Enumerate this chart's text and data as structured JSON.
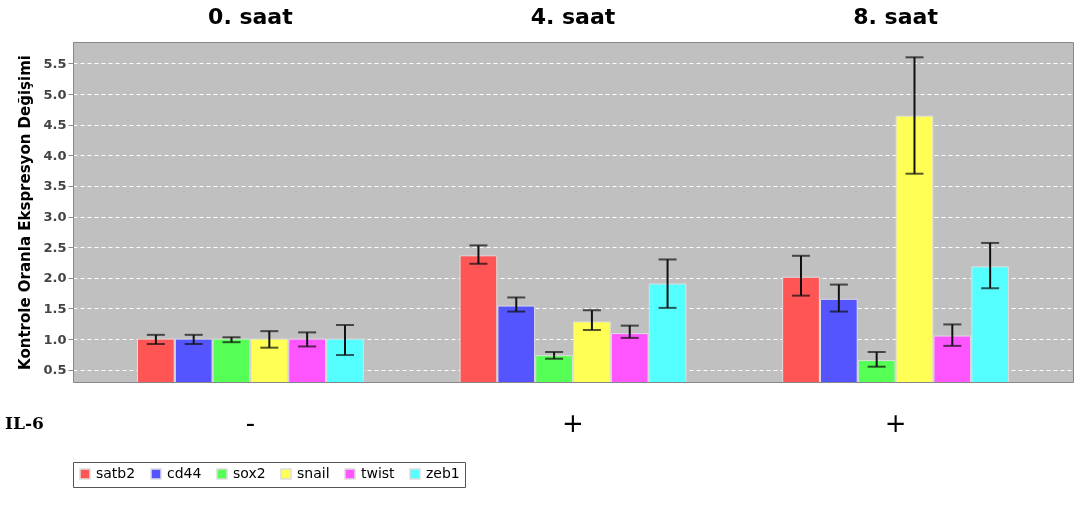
{
  "chart_data": {
    "type": "bar",
    "ylabel": "Kontrole Oranla Ekspresyon Değişimi",
    "categories": [
      "0. saat",
      "4. saat",
      "8. saat"
    ],
    "series": [
      {
        "name": "satb2",
        "color": "#ff5555",
        "values": [
          1.0,
          2.36,
          2.01
        ],
        "errors": [
          [
            0.92,
            1.07
          ],
          [
            2.23,
            2.53
          ],
          [
            1.71,
            2.36
          ]
        ]
      },
      {
        "name": "cd44",
        "color": "#5555ff",
        "values": [
          1.0,
          1.54,
          1.65
        ],
        "errors": [
          [
            0.92,
            1.07
          ],
          [
            1.45,
            1.68
          ],
          [
            1.45,
            1.89
          ]
        ]
      },
      {
        "name": "sox2",
        "color": "#55ff55",
        "values": [
          1.0,
          0.73,
          0.65
        ],
        "errors": [
          [
            0.95,
            1.03
          ],
          [
            0.68,
            0.79
          ],
          [
            0.55,
            0.79
          ]
        ]
      },
      {
        "name": "snail",
        "color": "#ffff55",
        "values": [
          1.0,
          1.28,
          4.64
        ],
        "errors": [
          [
            0.86,
            1.13
          ],
          [
            1.15,
            1.47
          ],
          [
            3.7,
            5.6
          ]
        ]
      },
      {
        "name": "twist",
        "color": "#ff55ff",
        "values": [
          1.0,
          1.09,
          1.05
        ],
        "errors": [
          [
            0.88,
            1.11
          ],
          [
            1.02,
            1.22
          ],
          [
            0.89,
            1.24
          ]
        ]
      },
      {
        "name": "zeb1",
        "color": "#55ffff",
        "values": [
          1.0,
          1.9,
          2.18
        ],
        "errors": [
          [
            0.74,
            1.23
          ],
          [
            1.51,
            2.3
          ],
          [
            1.83,
            2.57
          ]
        ]
      }
    ],
    "ylim": [
      0.3,
      5.85
    ],
    "yticks": [
      {
        "value": 0.5,
        "label": "0.5"
      },
      {
        "value": 1.0,
        "label": "1.0"
      },
      {
        "value": 1.5,
        "label": "1.5"
      },
      {
        "value": 2.0,
        "label": "2.0"
      },
      {
        "value": 2.5,
        "label": "2.5"
      },
      {
        "value": 3.0,
        "label": "3.0"
      },
      {
        "value": 3.5,
        "label": "3.5"
      },
      {
        "value": 4.0,
        "label": "4.0"
      },
      {
        "value": 4.5,
        "label": "4.5"
      },
      {
        "value": 5.0,
        "label": "5.0"
      },
      {
        "value": 5.5,
        "label": "5.5"
      }
    ],
    "grid": "y",
    "legend": "bottom",
    "annotations": [
      "IL-6",
      "-",
      "+",
      "+"
    ]
  }
}
